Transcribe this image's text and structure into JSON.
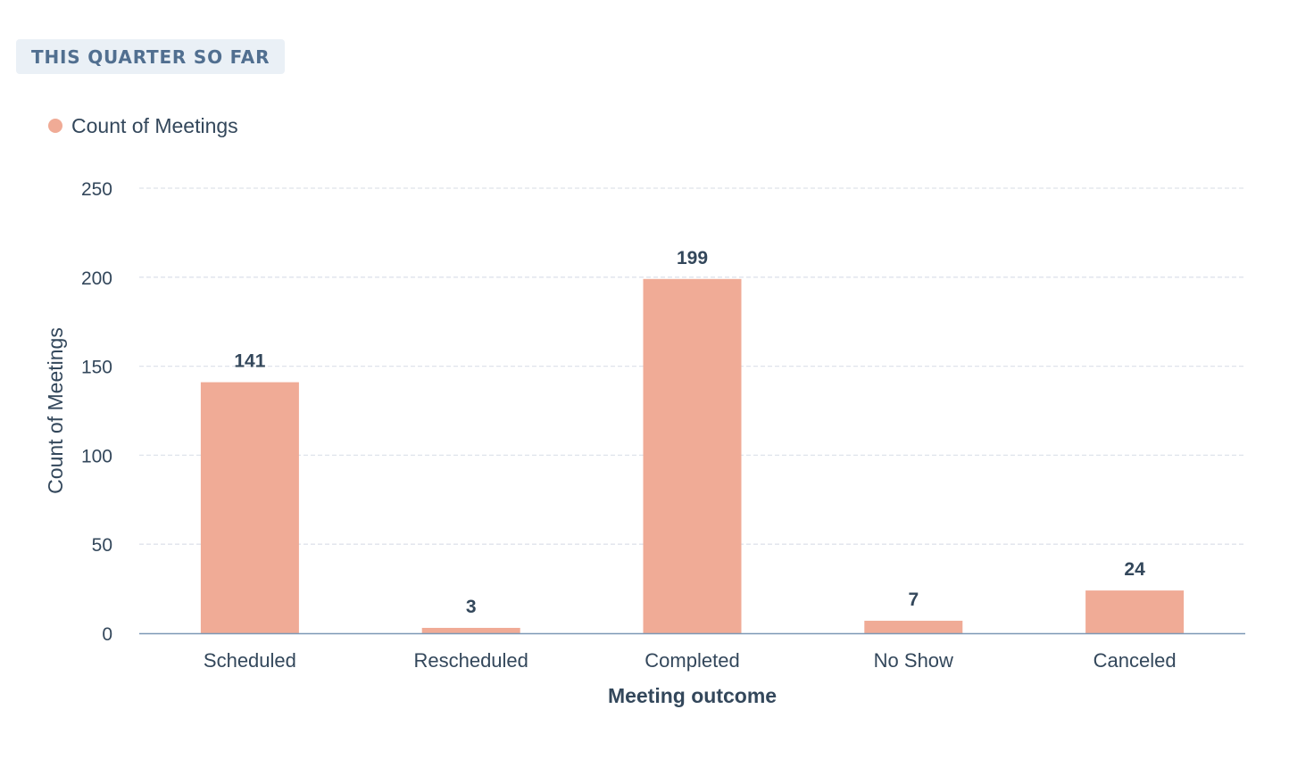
{
  "date_range_label": "THIS QUARTER SO FAR",
  "colors": {
    "bar": "#f0ab96",
    "grid": "#dfe3eb",
    "axis": "#7c98b6",
    "text": "#33475b",
    "chip_bg": "#eaf0f6",
    "chip_text": "#516f90"
  },
  "chart_data": {
    "type": "bar",
    "categories": [
      "Scheduled",
      "Rescheduled",
      "Completed",
      "No Show",
      "Canceled"
    ],
    "series": [
      {
        "name": "Count of Meetings",
        "values": [
          141,
          3,
          199,
          7,
          24
        ]
      }
    ],
    "xlabel": "Meeting outcome",
    "ylabel": "Count of Meetings",
    "ylim": [
      0,
      250
    ],
    "yticks": [
      0,
      50,
      100,
      150,
      200,
      250
    ],
    "data_labels": [
      "141",
      "3",
      "199",
      "7",
      "24"
    ],
    "grid": true,
    "legend_position": "top-left"
  }
}
